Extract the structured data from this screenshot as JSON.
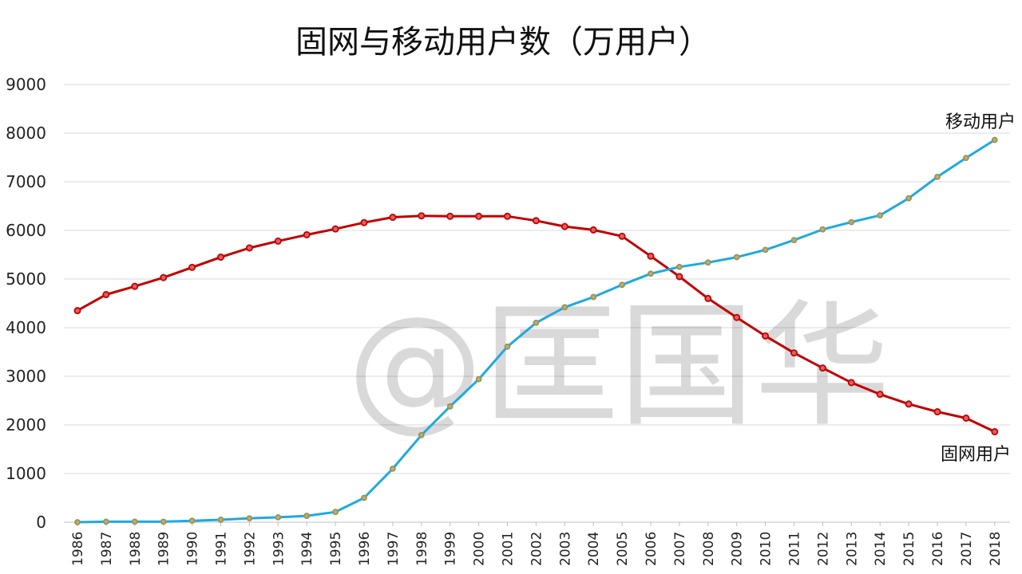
{
  "chart_data": {
    "type": "line",
    "title": "固网与移动用户数（万用户）",
    "xlabel": "",
    "ylabel": "",
    "ylim": [
      0,
      9000
    ],
    "yticks": [
      0,
      1000,
      2000,
      3000,
      4000,
      5000,
      6000,
      7000,
      8000,
      9000
    ],
    "grid": true,
    "legend": "none",
    "watermark": "@匡国华",
    "x": [
      "1986",
      "1987",
      "1988",
      "1989",
      "1990",
      "1991",
      "1992",
      "1993",
      "1994",
      "1995",
      "1996",
      "1997",
      "1998",
      "1999",
      "2000",
      "2001",
      "2002",
      "2003",
      "2004",
      "2005",
      "2006",
      "2007",
      "2008",
      "2009",
      "2010",
      "2011",
      "2012",
      "2013",
      "2014",
      "2015",
      "2016",
      "2017",
      "2018"
    ],
    "series": [
      {
        "name": "固网用户",
        "color": "#c00000",
        "values": [
          4350,
          4680,
          4850,
          5030,
          5240,
          5450,
          5640,
          5780,
          5910,
          6030,
          6160,
          6270,
          6300,
          6290,
          6290,
          6290,
          6200,
          6080,
          6010,
          5880,
          5470,
          5050,
          4600,
          4210,
          3830,
          3480,
          3170,
          2870,
          2630,
          2430,
          2270,
          2140,
          1860
        ]
      },
      {
        "name": "移动用户",
        "color": "#1fa9e0",
        "values": [
          0,
          10,
          10,
          10,
          30,
          50,
          80,
          100,
          130,
          210,
          500,
          1100,
          1790,
          2380,
          2940,
          3610,
          4100,
          4420,
          4630,
          4880,
          5110,
          5250,
          5340,
          5450,
          5600,
          5800,
          6020,
          6170,
          6310,
          6660,
          7100,
          7490,
          7860
        ]
      }
    ]
  }
}
